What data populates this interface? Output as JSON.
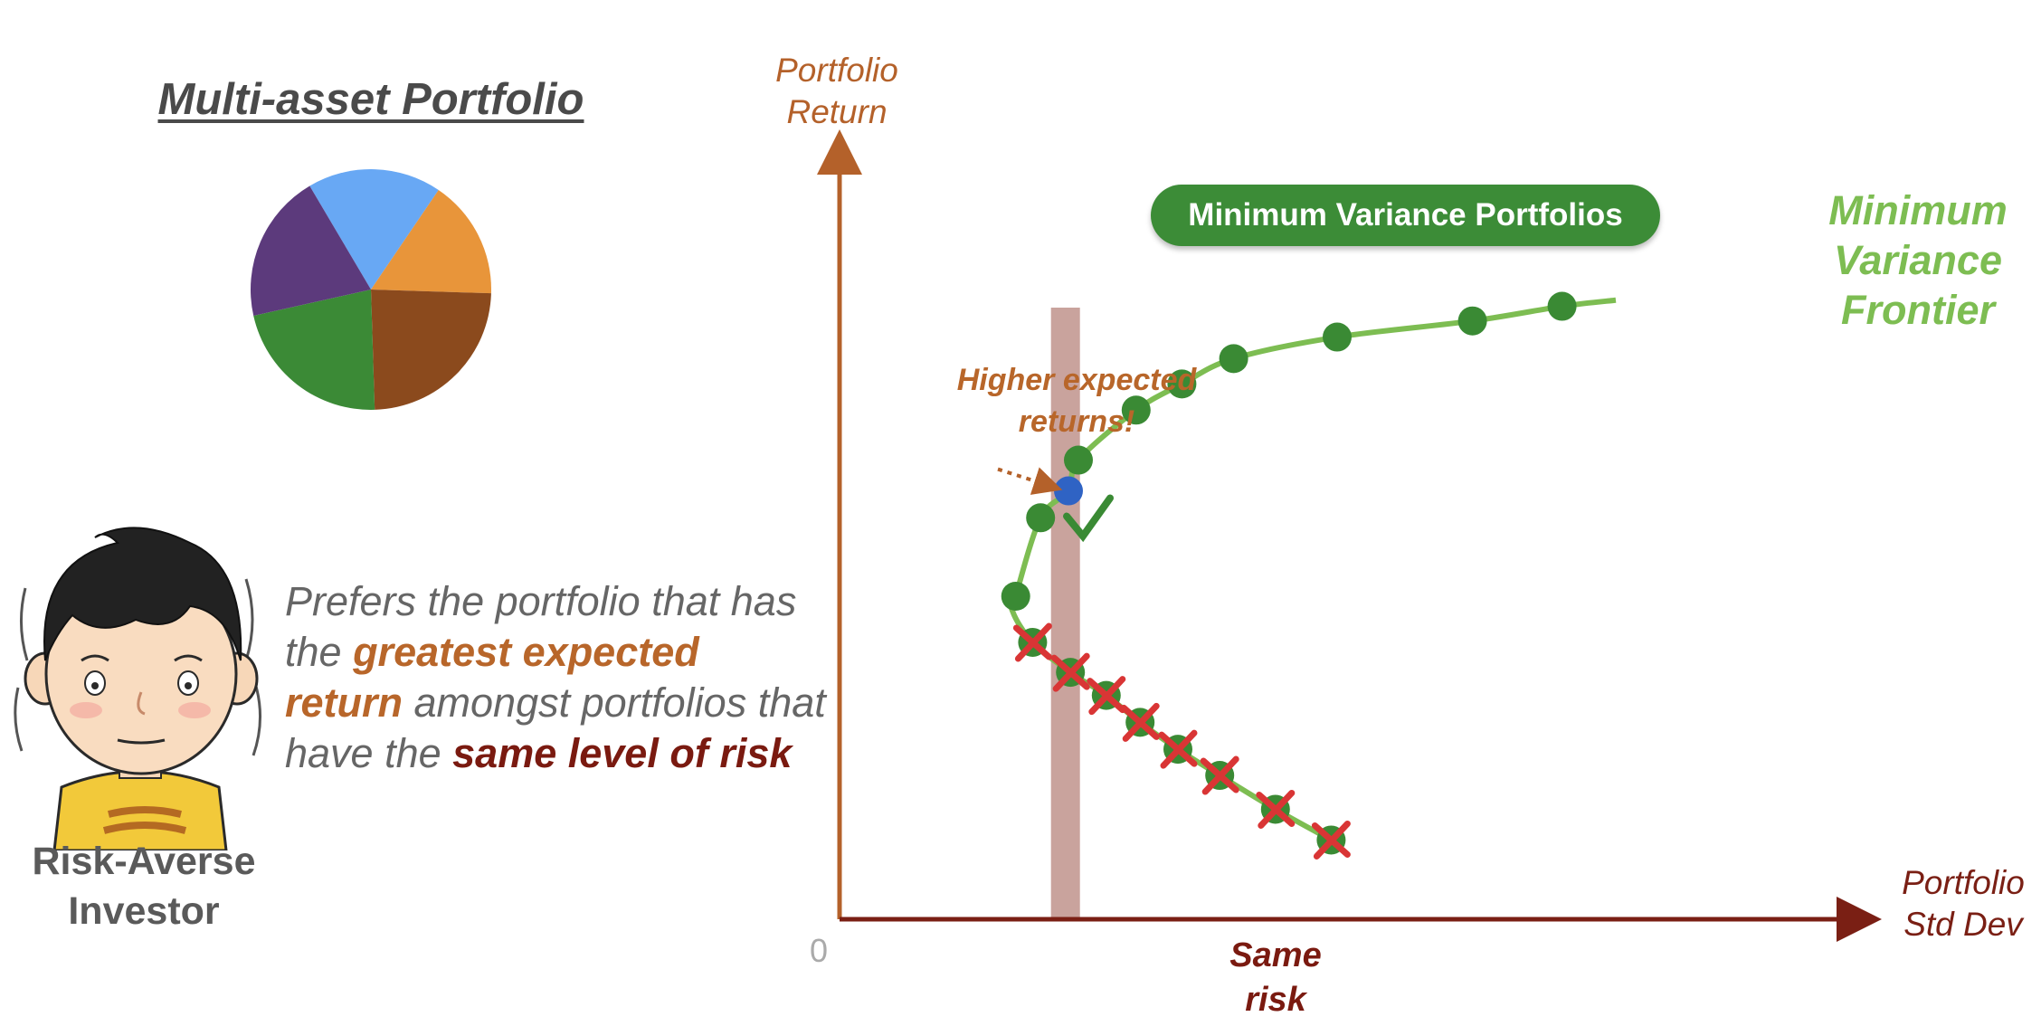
{
  "colors": {
    "axis": "#b4612a",
    "axis_x": "#7a1f14",
    "frontier_line": "#7dbd52",
    "dot_green": "#3a8a34",
    "dot_blue": "#2f63c4",
    "cross_red": "#d93535",
    "highlight_orange": "#b8662a",
    "highlight_darkred": "#7a1a10",
    "band": "#c9a39d",
    "pill_green": "#3c8c37",
    "frontier_label": "#7dbd52"
  },
  "left_panel": {
    "title": "Multi-asset Portfolio",
    "pie_slices": [
      {
        "name": "blue",
        "color": "#68a8f4",
        "share": 0.18
      },
      {
        "name": "orange",
        "color": "#e8953a",
        "share": 0.16
      },
      {
        "name": "brown",
        "color": "#8b4a1d",
        "share": 0.24
      },
      {
        "name": "green",
        "color": "#3b8a36",
        "share": 0.22
      },
      {
        "name": "purple",
        "color": "#5c3a7c",
        "share": 0.2
      }
    ],
    "investor_label_line1": "Risk-Averse",
    "investor_label_line2": "Investor",
    "preference": {
      "part1": "Prefers the portfolio that has the ",
      "highlight1": "greatest expected return",
      "part2": " amongst portfolios that have the ",
      "highlight2": "same level of risk"
    }
  },
  "chart_data": {
    "type": "scatter",
    "title": "",
    "xlabel_line1": "Portfolio",
    "xlabel_line2": "Std Dev",
    "ylabel_line1": "Portfolio",
    "ylabel_line2": "Return",
    "xlim": [
      0,
      10
    ],
    "ylim": [
      0,
      10
    ],
    "origin_label": "0",
    "series": [
      {
        "name": "efficient",
        "points": [
          [
            1.77,
            4.2
          ],
          [
            2.02,
            5.22
          ],
          [
            2.4,
            5.97
          ],
          [
            2.98,
            6.62
          ],
          [
            3.44,
            6.96
          ],
          [
            3.96,
            7.29
          ],
          [
            5.0,
            7.57
          ],
          [
            6.36,
            7.78
          ],
          [
            7.26,
            7.97
          ]
        ]
      },
      {
        "name": "selected",
        "points": [
          [
            2.3,
            5.57
          ]
        ]
      },
      {
        "name": "inefficient",
        "points": [
          [
            1.94,
            3.6
          ],
          [
            2.32,
            3.21
          ],
          [
            2.68,
            2.91
          ],
          [
            3.02,
            2.56
          ],
          [
            3.4,
            2.21
          ],
          [
            3.82,
            1.87
          ],
          [
            4.38,
            1.43
          ],
          [
            4.94,
            1.03
          ]
        ]
      }
    ],
    "band_x": 2.27,
    "frontier_label_lines": [
      "Minimum",
      "Variance",
      "Frontier"
    ],
    "pill_label": "Minimum Variance Portfolios",
    "annotation_higher_line1": "Higher expected",
    "annotation_higher_line2": "returns!",
    "annotation_same_line1": "Same",
    "annotation_same_line2": "risk"
  }
}
